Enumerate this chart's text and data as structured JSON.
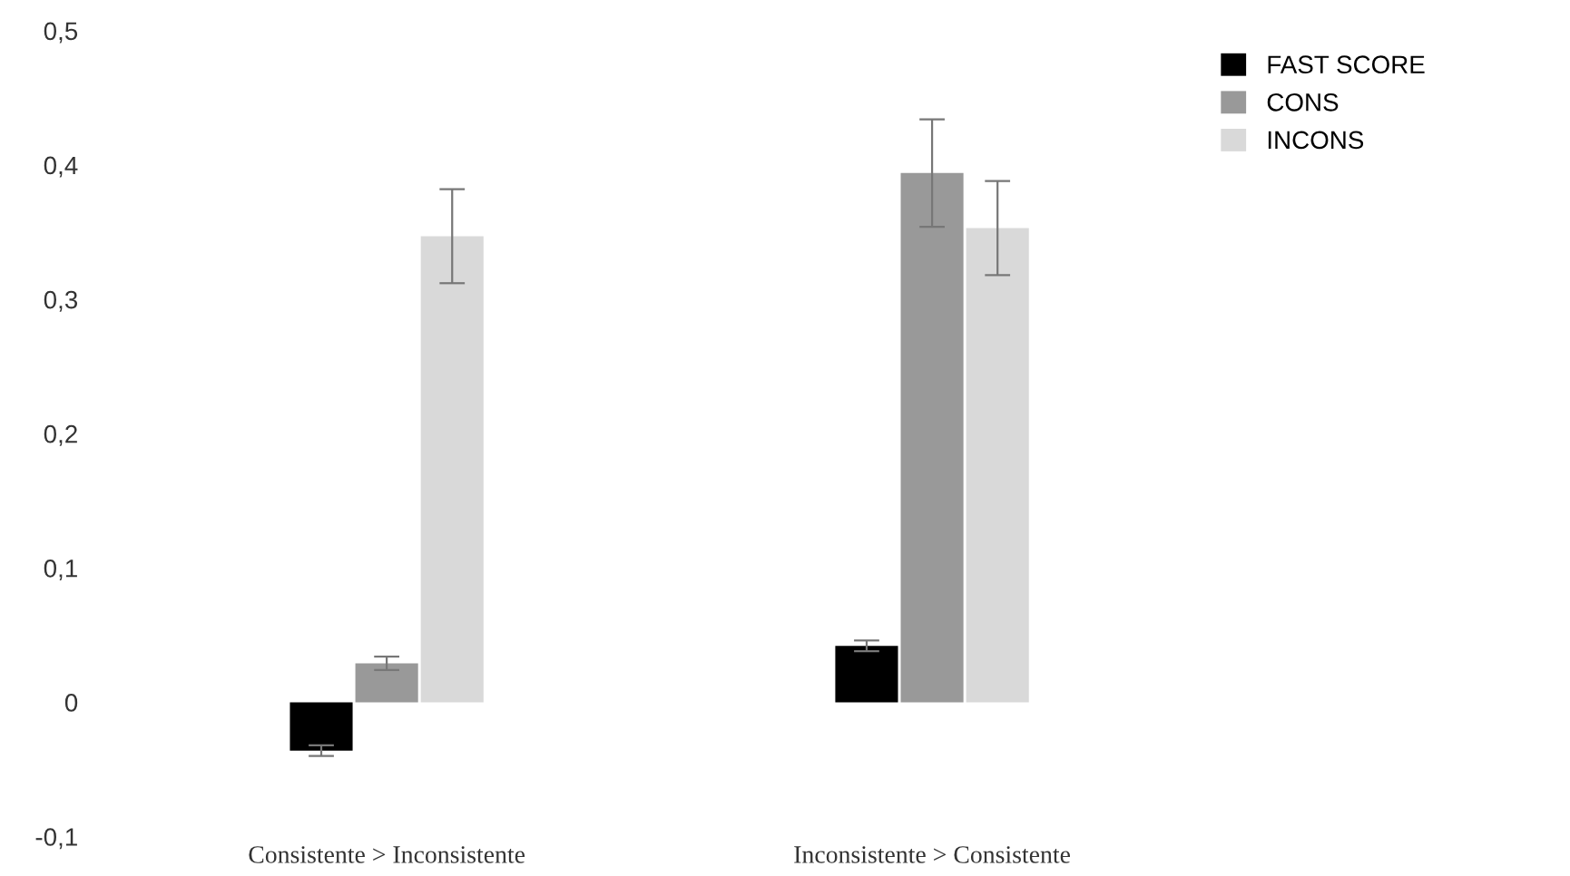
{
  "chart_data": {
    "type": "bar",
    "categories": [
      "Consistente > Inconsistente",
      "Inconsistente > Consistente"
    ],
    "series": [
      {
        "name": "FAST SCORE",
        "color": "#000000",
        "values": [
          -0.036,
          0.042
        ],
        "errors": [
          0.004,
          0.004
        ]
      },
      {
        "name": "CONS",
        "color": "#999999",
        "values": [
          0.029,
          0.394
        ],
        "errors": [
          0.005,
          0.04
        ]
      },
      {
        "name": "INCONS",
        "color": "#d9d9d9",
        "values": [
          0.347,
          0.353
        ],
        "errors": [
          0.035,
          0.035
        ]
      }
    ],
    "ylim": [
      -0.1,
      0.5
    ],
    "yticks": [
      {
        "value": -0.1,
        "label": "-0,1"
      },
      {
        "value": 0,
        "label": "0"
      },
      {
        "value": 0.1,
        "label": "0,1"
      },
      {
        "value": 0.2,
        "label": "0,2"
      },
      {
        "value": 0.3,
        "label": "0,3"
      },
      {
        "value": 0.4,
        "label": "0,4"
      },
      {
        "value": 0.5,
        "label": "0,5"
      }
    ],
    "grid": false,
    "legend": "top right"
  }
}
